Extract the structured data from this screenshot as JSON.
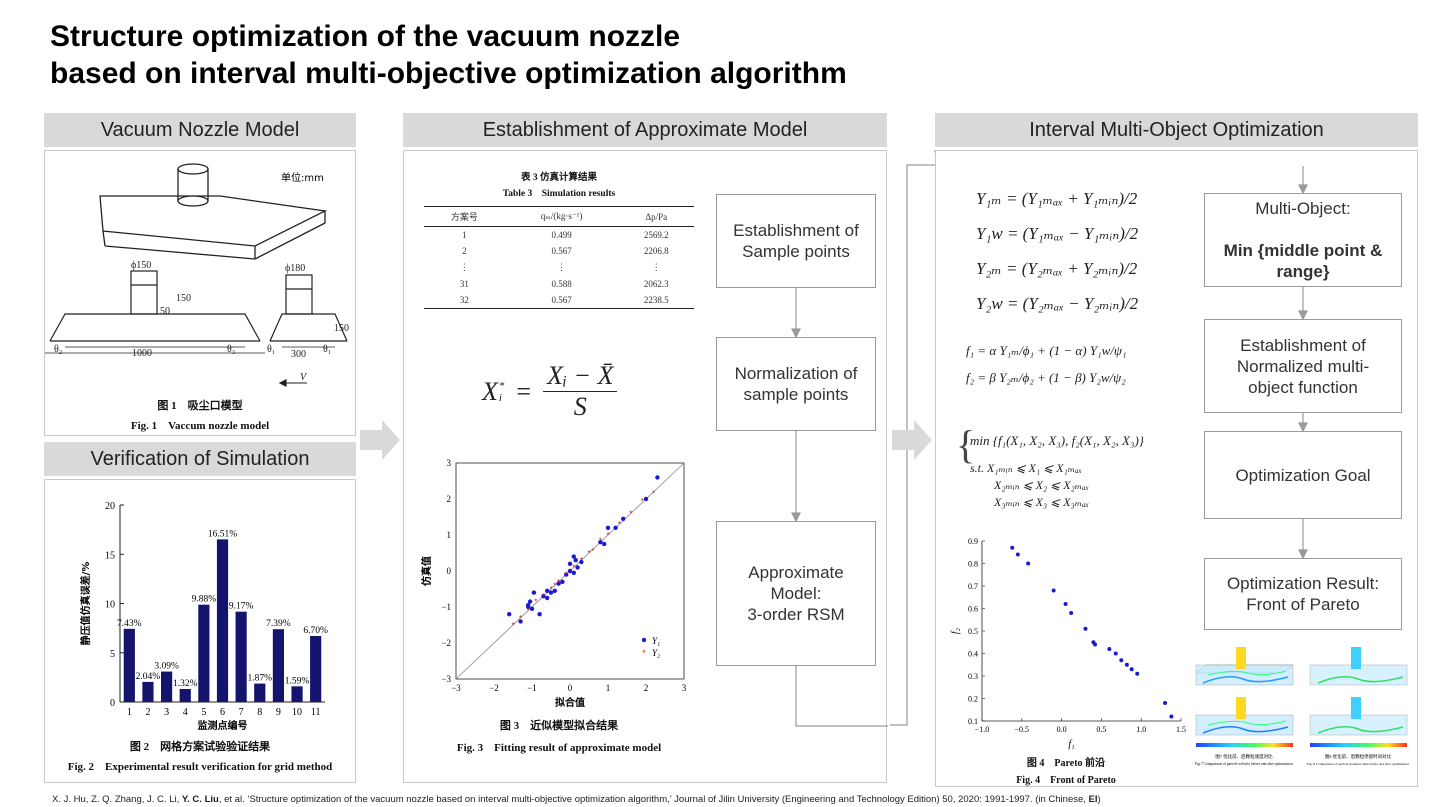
{
  "title": {
    "line1": "Structure optimization of the vacuum nozzle",
    "line2": "based on interval multi-objective optimization algorithm"
  },
  "sections": {
    "nozzle": "Vacuum Nozzle Model",
    "verification": "Verification of Simulation",
    "approx": "Establishment of Approximate Model",
    "interval": "Interval Multi-Object Optimization"
  },
  "nozzle_fig": {
    "unit": "单位:mm",
    "dims": [
      "ϕ150",
      "ϕ180",
      "150",
      "50",
      "150",
      "1000",
      "300",
      "θ₁",
      "θ₂",
      "θ₃",
      "θ₁"
    ],
    "v_label": "V",
    "caption_cn": "图 1　吸尘口模型",
    "caption_en": "Fig. 1　Vaccum nozzle model"
  },
  "verification_fig": {
    "ylabel": "静压值仿真误差/%",
    "xlabel": "监测点编号",
    "caption_cn": "图 2　网格方案试验验证结果",
    "caption_en": "Fig. 2　Experimental result verification for grid method"
  },
  "table3": {
    "title_cn": "表 3  仿真计算结果",
    "title_en": "Table 3　Simulation results",
    "headers": [
      "方案号",
      "qₘ/(kg·s⁻¹)",
      "Δp/Pa"
    ],
    "rows": [
      [
        "1",
        "0.499",
        "2569.2"
      ],
      [
        "2",
        "0.567",
        "2206.8"
      ],
      [
        "⋮",
        "⋮",
        "⋮"
      ],
      [
        "31",
        "0.588",
        "2062.3"
      ],
      [
        "32",
        "0.567",
        "2238.5"
      ]
    ]
  },
  "normalization_formula": {
    "lhs": "X",
    "sub": "i",
    "sup": "*",
    "num": "Xᵢ − X̄",
    "den": "S"
  },
  "fit_fig": {
    "ylabel": "仿真值",
    "xlabel": "拟合值",
    "legend": [
      "Y₁",
      "Y₂"
    ],
    "caption_cn": "图 3　近似模型拟合结果",
    "caption_en": "Fig. 3　Fitting result of approximate model"
  },
  "approx_steps": [
    "Establishment of\nSample points",
    "Normalization of\nsample points",
    "Approximate\nModel:\n3-order RSM"
  ],
  "interval_equations": {
    "y1m": "Y₁ₘ = (Y₁ₘₐₓ + Y₁ₘᵢₙ)/2",
    "y1w": "Y₁w = (Y₁ₘₐₓ − Y₁ₘᵢₙ)/2",
    "y2m": "Y₂ₘ = (Y₂ₘₐₓ + Y₂ₘᵢₙ)/2",
    "y2w": "Y₂w = (Y₂ₘₐₓ − Y₂ₘᵢₙ)/2",
    "f1": "f₁ = α Y₁ₘ/ϕ₁ + (1 − α) Y₁w/ψ₁",
    "f2": "f₂ = β Y₂ₘ/ϕ₂ + (1 − β) Y₂w/ψ₂",
    "min": "min {f₁(X₁, X₂, X₃), f₂(X₁, X₂, X₃)}",
    "st1": "s.t.  X₁ₘᵢₙ ⩽ X₁ ⩽ X₁ₘₐₓ",
    "st2": "X₂ₘᵢₙ ⩽ X₂ ⩽ X₂ₘₐₓ",
    "st3": "X₃ₘᵢₙ ⩽ X₃ ⩽ X₃ₘₐₓ"
  },
  "pareto_fig": {
    "xlabel": "f₁",
    "ylabel": "f₂",
    "caption_cn": "图 4　Pareto 前沿",
    "caption_en": "Fig. 4　Front of Pareto"
  },
  "optimization_steps": {
    "multi_object_line1": "Multi-Object:",
    "multi_object_line2": "Min {middle point &\nrange}",
    "normalized": "Establishment of\nNormalized multi-\nobject function",
    "goal": "Optimization Goal",
    "result": "Optimization Result:\nFront of Pareto"
  },
  "cfd_captions": {
    "fig7": "图7  优化前、后颗粒速度对比",
    "fig7_en": "Fig.7  Comparision of particle velocity before and after optimization",
    "fig8": "图8  优化前、后颗粒停留时间对比",
    "fig8_en": "Fig. 8  Comparision of particle residence time before and after optimization"
  },
  "footer": {
    "prefix": "X. J. Hu, Z. Q. Zhang, J. C. Li, ",
    "bold_author": "Y. C. Liu",
    "middle": ", et al. ‘Structure optimization of the vacuum nozzle based on interval multi-objective optimization algorithm,’ Journal of Jilin University (Engineering and Technology Edition) 50, 2020: 1991-1997. (in Chinese, ",
    "bold_tag": "EI",
    "suffix": ")"
  },
  "colors": {
    "bar": "#14146e",
    "y1": "#1a1ad0",
    "y2": "#d02020",
    "header_bg": "#d9d9d9",
    "pareto": "#1a1ad0"
  },
  "chart_data": [
    {
      "type": "bar",
      "categories": [
        "1",
        "2",
        "3",
        "4",
        "5",
        "6",
        "7",
        "8",
        "9",
        "10",
        "11"
      ],
      "values": [
        7.43,
        2.04,
        3.09,
        1.32,
        9.88,
        16.51,
        9.17,
        1.87,
        7.39,
        1.59,
        6.7
      ],
      "labels": [
        "7.43%",
        "2.04%",
        "3.09%",
        "1.32%",
        "9.88%",
        "16.51%",
        "9.17%",
        "1.87%",
        "7.39%",
        "1.59%",
        "6.70%"
      ],
      "ylim": [
        0,
        20
      ],
      "yticks": [
        0,
        5,
        10,
        15,
        20
      ],
      "xlabel": "监测点编号",
      "ylabel": "静压值仿真误差/%"
    },
    {
      "type": "scatter",
      "xlim": [
        -3,
        3
      ],
      "ylim": [
        -3,
        3
      ],
      "xticks": [
        -3,
        -2,
        -1,
        0,
        1,
        2,
        3
      ],
      "yticks": [
        -3,
        -2,
        -1,
        0,
        1,
        2,
        3
      ],
      "xlabel": "拟合值",
      "ylabel": "仿真值",
      "series": [
        {
          "name": "Y₁",
          "points": [
            [
              -1.6,
              -1.2
            ],
            [
              -1.3,
              -1.4
            ],
            [
              -1.1,
              -1.0
            ],
            [
              -1.0,
              -1.05
            ],
            [
              -1.05,
              -0.85
            ],
            [
              -0.95,
              -0.6
            ],
            [
              -0.8,
              -1.2
            ],
            [
              -0.7,
              -0.7
            ],
            [
              -0.6,
              -0.75
            ],
            [
              -0.5,
              -0.6
            ],
            [
              -0.4,
              -0.55
            ],
            [
              -0.3,
              -0.35
            ],
            [
              -0.2,
              -0.3
            ],
            [
              -0.1,
              -0.1
            ],
            [
              0.0,
              0.2
            ],
            [
              0.1,
              0.4
            ],
            [
              0.1,
              -0.05
            ],
            [
              0.2,
              0.1
            ],
            [
              0.3,
              0.25
            ],
            [
              0.8,
              0.8
            ],
            [
              0.9,
              0.75
            ],
            [
              1.0,
              1.2
            ],
            [
              1.2,
              1.2
            ],
            [
              1.4,
              1.45
            ],
            [
              2.0,
              2.0
            ],
            [
              2.3,
              2.6
            ],
            [
              -1.1,
              -0.95
            ],
            [
              0.0,
              0.0
            ],
            [
              -0.6,
              -0.55
            ],
            [
              0.15,
              0.3
            ]
          ]
        },
        {
          "name": "Y₂",
          "points": [
            [
              -1.5,
              -1.5
            ],
            [
              -1.3,
              -1.3
            ],
            [
              -1.1,
              -1.1
            ],
            [
              -0.9,
              -0.85
            ],
            [
              -0.7,
              -0.7
            ],
            [
              -0.5,
              -0.5
            ],
            [
              -0.3,
              -0.3
            ],
            [
              -0.1,
              -0.1
            ],
            [
              0.1,
              0.1
            ],
            [
              0.3,
              0.3
            ],
            [
              0.5,
              0.5
            ],
            [
              0.8,
              0.85
            ],
            [
              1.0,
              1.0
            ],
            [
              1.3,
              1.3
            ],
            [
              1.6,
              1.6
            ],
            [
              1.9,
              1.95
            ],
            [
              2.2,
              2.15
            ],
            [
              -0.4,
              -0.4
            ],
            [
              0.6,
              0.55
            ]
          ]
        }
      ]
    },
    {
      "type": "scatter",
      "xlim": [
        -1.0,
        1.5
      ],
      "ylim": [
        0.1,
        0.9
      ],
      "xticks": [
        -1.0,
        -0.5,
        0.0,
        0.5,
        1.0,
        1.5
      ],
      "yticks": [
        0.1,
        0.2,
        0.3,
        0.4,
        0.5,
        0.6,
        0.7,
        0.8,
        0.9
      ],
      "xlabel": "f₁",
      "ylabel": "f₂",
      "series": [
        {
          "name": "",
          "points": [
            [
              -0.62,
              0.87
            ],
            [
              -0.55,
              0.84
            ],
            [
              -0.42,
              0.8
            ],
            [
              -0.1,
              0.68
            ],
            [
              0.05,
              0.62
            ],
            [
              0.12,
              0.58
            ],
            [
              0.3,
              0.51
            ],
            [
              0.4,
              0.45
            ],
            [
              0.42,
              0.44
            ],
            [
              0.6,
              0.42
            ],
            [
              0.68,
              0.4
            ],
            [
              0.75,
              0.37
            ],
            [
              0.82,
              0.35
            ],
            [
              0.88,
              0.33
            ],
            [
              0.95,
              0.31
            ],
            [
              1.3,
              0.18
            ],
            [
              1.38,
              0.12
            ]
          ]
        }
      ]
    }
  ]
}
